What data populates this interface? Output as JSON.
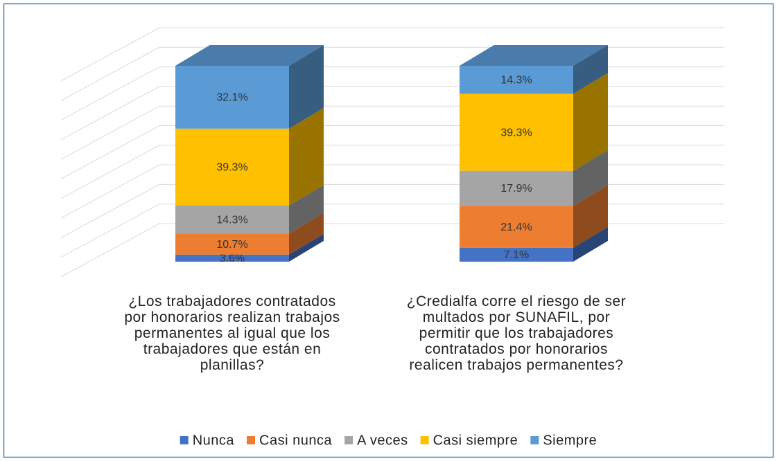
{
  "chart_data": {
    "type": "bar3d_stacked",
    "categories": [
      "¿Los trabajadores contratados por honorarios realizan trabajos permanentes al igual que los trabajadores que están en planillas?",
      "¿Credialfa corre el riesgo de ser multados por SUNAFIL, por permitir que los trabajadores contratados por honorarios realicen trabajos permanentes?"
    ],
    "series": [
      {
        "name": "Nunca",
        "color": "#4472c4",
        "values": [
          3.6,
          7.1
        ],
        "value_labels": [
          "3.6%",
          "7.1%"
        ]
      },
      {
        "name": "Casi nunca",
        "color": "#ed7d31",
        "values": [
          10.7,
          21.4
        ],
        "value_labels": [
          "10.7%",
          "21.4%"
        ]
      },
      {
        "name": "A veces",
        "color": "#a5a5a5",
        "values": [
          14.3,
          17.9
        ],
        "value_labels": [
          "14.3%",
          "17.9%"
        ]
      },
      {
        "name": "Casi siempre",
        "color": "#ffc000",
        "values": [
          39.3,
          39.3
        ],
        "value_labels": [
          "39.3%",
          "39.3%"
        ]
      },
      {
        "name": "Siempre",
        "color": "#5b9bd5",
        "values": [
          32.1,
          14.3
        ],
        "value_labels": [
          "32.1%",
          "14.3%"
        ]
      }
    ],
    "ylim": [
      0,
      100
    ],
    "yticks": [
      0,
      10,
      20,
      30,
      40,
      50,
      60,
      70,
      80,
      90,
      100
    ],
    "grid": true,
    "legend": "bottom"
  }
}
